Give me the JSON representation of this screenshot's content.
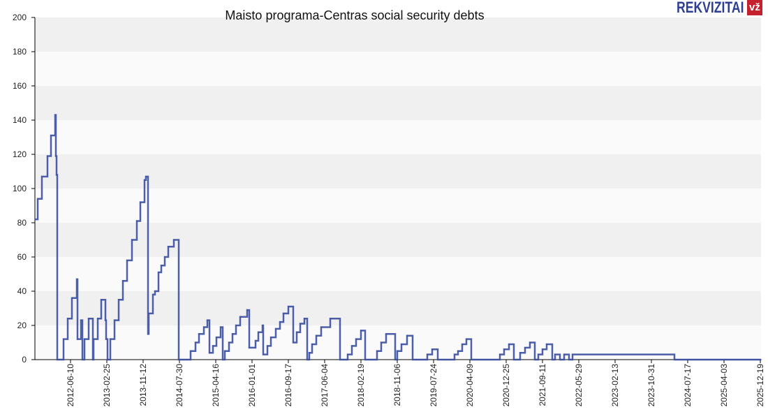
{
  "header": {
    "title": "Maisto programa-Centras social security debts",
    "logo_text": "REKVIZITAI",
    "logo_badge": "vž"
  },
  "chart_data": {
    "type": "line",
    "step": true,
    "title": "Maisto programa-Centras social security debts",
    "xlabel": "",
    "ylabel": "",
    "ylim": [
      0,
      200
    ],
    "xlim": [
      "2011-09-29",
      "2025-12-24"
    ],
    "yticks": [
      "0",
      "20",
      "40",
      "60",
      "80",
      "100",
      "120",
      "140",
      "160",
      "180",
      "200"
    ],
    "xticks": [
      "2012-06-10",
      "2013-02-25",
      "2013-11-12",
      "2014-07-30",
      "2015-04-16",
      "2016-01-01",
      "2016-09-17",
      "2017-06-04",
      "2018-02-19",
      "2018-11-06",
      "2019-07-24",
      "2020-04-09",
      "2020-12-25",
      "2021-09-11",
      "2022-05-29",
      "2023-02-13",
      "2023-10-31",
      "2024-07-17",
      "2025-04-03",
      "2025-12-19"
    ],
    "grid": "horizontal alternating bands",
    "line_color": "#3a4ea0",
    "points": [
      [
        "2011-09-29",
        82
      ],
      [
        "2011-10-19",
        94
      ],
      [
        "2011-11-18",
        107
      ],
      [
        "2011-12-28",
        119
      ],
      [
        "2012-01-22",
        131
      ],
      [
        "2012-02-21",
        143
      ],
      [
        "2012-02-26",
        119
      ],
      [
        "2012-03-02",
        108
      ],
      [
        "2012-03-07",
        0
      ],
      [
        "2012-04-21",
        12
      ],
      [
        "2012-05-21",
        24
      ],
      [
        "2012-06-20",
        36
      ],
      [
        "2012-07-25",
        47
      ],
      [
        "2012-07-30",
        12
      ],
      [
        "2012-08-24",
        23
      ],
      [
        "2012-09-03",
        0
      ],
      [
        "2012-09-18",
        12
      ],
      [
        "2012-10-18",
        24
      ],
      [
        "2012-11-17",
        0
      ],
      [
        "2012-11-22",
        12
      ],
      [
        "2012-12-22",
        24
      ],
      [
        "2013-01-16",
        35
      ],
      [
        "2013-02-15",
        23
      ],
      [
        "2013-02-20",
        12
      ],
      [
        "2013-03-02",
        0
      ],
      [
        "2013-03-22",
        12
      ],
      [
        "2013-04-21",
        23
      ],
      [
        "2013-05-21",
        35
      ],
      [
        "2013-06-20",
        46
      ],
      [
        "2013-07-20",
        58
      ],
      [
        "2013-08-24",
        70
      ],
      [
        "2013-09-28",
        81
      ],
      [
        "2013-10-23",
        92
      ],
      [
        "2013-11-22",
        105
      ],
      [
        "2013-12-02",
        107
      ],
      [
        "2013-12-17",
        15
      ],
      [
        "2013-12-22",
        27
      ],
      [
        "2014-01-21",
        38
      ],
      [
        "2014-02-05",
        40
      ],
      [
        "2014-03-02",
        51
      ],
      [
        "2014-03-22",
        55
      ],
      [
        "2014-04-16",
        60
      ],
      [
        "2014-05-11",
        66
      ],
      [
        "2014-06-20",
        70
      ],
      [
        "2014-07-25",
        0
      ],
      [
        "2014-10-18",
        5
      ],
      [
        "2014-11-22",
        10
      ],
      [
        "2014-12-17",
        15
      ],
      [
        "2015-01-21",
        19
      ],
      [
        "2015-02-15",
        23
      ],
      [
        "2015-03-02",
        4
      ],
      [
        "2015-03-27",
        8
      ],
      [
        "2015-04-21",
        13
      ],
      [
        "2015-05-21",
        19
      ],
      [
        "2015-06-05",
        0
      ],
      [
        "2015-06-20",
        5
      ],
      [
        "2015-07-20",
        10
      ],
      [
        "2015-08-14",
        15
      ],
      [
        "2015-09-08",
        20
      ],
      [
        "2015-10-08",
        25
      ],
      [
        "2015-11-27",
        29
      ],
      [
        "2015-12-12",
        7
      ],
      [
        "2016-01-26",
        11
      ],
      [
        "2016-02-15",
        16
      ],
      [
        "2016-03-16",
        20
      ],
      [
        "2016-03-21",
        3
      ],
      [
        "2016-04-20",
        8
      ],
      [
        "2016-05-15",
        13
      ],
      [
        "2016-06-19",
        18
      ],
      [
        "2016-07-19",
        22
      ],
      [
        "2016-08-13",
        27
      ],
      [
        "2016-09-17",
        31
      ],
      [
        "2016-10-22",
        10
      ],
      [
        "2016-11-16",
        16
      ],
      [
        "2016-12-11",
        21
      ],
      [
        "2017-01-10",
        24
      ],
      [
        "2017-01-30",
        0
      ],
      [
        "2017-02-14",
        4
      ],
      [
        "2017-03-06",
        9
      ],
      [
        "2017-04-05",
        14
      ],
      [
        "2017-05-10",
        19
      ],
      [
        "2017-07-14",
        24
      ],
      [
        "2017-09-22",
        0
      ],
      [
        "2017-11-16",
        3
      ],
      [
        "2017-12-16",
        8
      ],
      [
        "2018-01-15",
        12
      ],
      [
        "2018-02-19",
        17
      ],
      [
        "2018-03-21",
        0
      ],
      [
        "2018-06-14",
        5
      ],
      [
        "2018-07-14",
        10
      ],
      [
        "2018-08-18",
        15
      ],
      [
        "2018-10-22",
        0
      ],
      [
        "2018-11-06",
        5
      ],
      [
        "2018-12-06",
        9
      ],
      [
        "2019-01-15",
        14
      ],
      [
        "2019-02-24",
        0
      ],
      [
        "2019-06-09",
        3
      ],
      [
        "2019-07-14",
        6
      ],
      [
        "2019-08-23",
        0
      ],
      [
        "2019-12-21",
        3
      ],
      [
        "2020-01-15",
        5
      ],
      [
        "2020-02-14",
        9
      ],
      [
        "2020-03-15",
        12
      ],
      [
        "2020-04-19",
        0
      ],
      [
        "2020-11-10",
        3
      ],
      [
        "2020-12-10",
        6
      ],
      [
        "2021-01-14",
        9
      ],
      [
        "2021-02-18",
        0
      ],
      [
        "2021-04-04",
        4
      ],
      [
        "2021-05-09",
        7
      ],
      [
        "2021-06-13",
        10
      ],
      [
        "2021-07-18",
        0
      ],
      [
        "2021-08-12",
        3
      ],
      [
        "2021-09-11",
        6
      ],
      [
        "2021-10-11",
        9
      ],
      [
        "2021-11-20",
        0
      ],
      [
        "2021-12-10",
        3
      ],
      [
        "2022-01-14",
        0
      ],
      [
        "2022-02-13",
        3
      ],
      [
        "2022-03-20",
        0
      ],
      [
        "2022-04-14",
        3
      ],
      [
        "2024-04-13",
        0
      ],
      [
        "2025-12-24",
        0
      ]
    ]
  }
}
